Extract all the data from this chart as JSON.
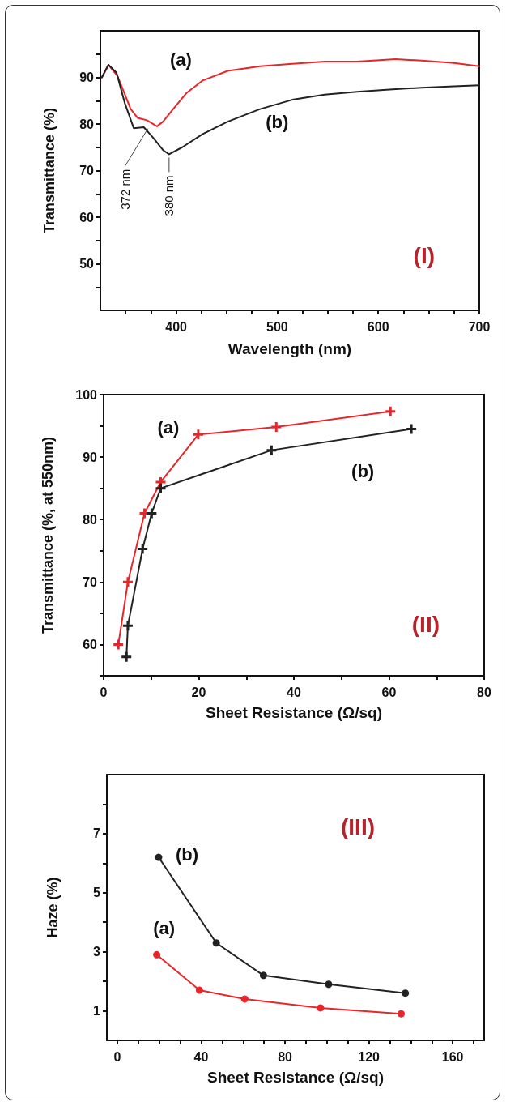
{
  "chart_data": [
    {
      "type": "line",
      "title": "(I)",
      "xlabel": "Wavelength (nm)",
      "ylabel": "Transmittance (%)",
      "x": [
        326.5,
        333,
        342,
        355,
        362,
        371,
        381,
        387,
        397,
        410,
        426,
        451,
        483,
        515,
        547,
        579,
        617,
        643,
        675,
        700
      ],
      "series": [
        {
          "name": "(a)",
          "color": "#e8262a",
          "values": [
            90,
            92.7,
            90.3,
            83.2,
            81.3,
            80.8,
            79.5,
            80.5,
            83.2,
            86.6,
            89.3,
            91.4,
            92.4,
            92.9,
            93.4,
            93.4,
            93.9,
            93.6,
            93.1,
            92.4
          ]
        },
        {
          "name": "(b)",
          "color": "#222222",
          "x": [
            326.5,
            333,
            341,
            349,
            358,
            368,
            377,
            387,
            393,
            406,
            426,
            451,
            483,
            515,
            547,
            579,
            611,
            643,
            675,
            700
          ],
          "values": [
            90,
            92.7,
            91,
            84.6,
            79.1,
            79.3,
            77.1,
            74.4,
            73.5,
            75,
            77.8,
            80.5,
            83.2,
            85.2,
            86.3,
            86.9,
            87.4,
            87.8,
            88.1,
            88.3
          ]
        }
      ],
      "xlim": [
        325,
        700
      ],
      "xticks": [
        {
          "value": 350,
          "label": null
        },
        {
          "value": 375,
          "label": null
        },
        400,
        {
          "value": 425,
          "label": null
        },
        {
          "value": 450,
          "label": null
        },
        {
          "value": 475,
          "label": null
        },
        500,
        {
          "value": 525,
          "label": null
        },
        {
          "value": 550,
          "label": null
        },
        {
          "value": 575,
          "label": null
        },
        600,
        {
          "value": 625,
          "label": null
        },
        {
          "value": 650,
          "label": null
        },
        {
          "value": 675,
          "label": null
        },
        700
      ],
      "ylim": [
        40,
        100
      ],
      "yticks": [
        {
          "value": 45,
          "label": null
        },
        50,
        {
          "value": 55,
          "label": null
        },
        60,
        {
          "value": 65,
          "label": null
        },
        70,
        {
          "value": 75,
          "label": null
        },
        80,
        {
          "value": 85,
          "label": null
        },
        90,
        {
          "value": 95,
          "label": null
        }
      ],
      "marker": "none",
      "line_style": "solid",
      "annotations": [
        {
          "text": "372 nm",
          "x": 372,
          "y": 79
        },
        "380 nm"
      ]
    },
    {
      "type": "line",
      "title": "(II)",
      "xlabel": "Sheet Resistance (Ω/sq)",
      "ylabel": "Transmittance (%, at 550nm)",
      "series": [
        {
          "name": "(a)",
          "color": "#e8262a",
          "x": [
            3.1,
            5.1,
            8.6,
            12,
            19.9,
            36.3,
            60.3
          ],
          "values": [
            60,
            70,
            81,
            86,
            93.6,
            94.8,
            97.3
          ]
        },
        {
          "name": "(b)",
          "color": "#222222",
          "x": [
            4.8,
            5.1,
            8.2,
            10.1,
            12,
            35.3,
            64.7
          ],
          "values": [
            58,
            63,
            75.3,
            81,
            85,
            91.1,
            94.5
          ]
        }
      ],
      "xlim": [
        0,
        80
      ],
      "xticks": [
        0,
        {
          "value": 10,
          "label": null
        },
        20,
        {
          "value": 30,
          "label": null
        },
        40,
        {
          "value": 50,
          "label": null
        },
        60,
        {
          "value": 70,
          "label": null
        },
        80
      ],
      "ylim": [
        55,
        100
      ],
      "yticks": [
        {
          "value": 55,
          "label": null
        },
        60,
        {
          "value": 65,
          "label": null
        },
        70,
        {
          "value": 75,
          "label": null
        },
        80,
        {
          "value": 85,
          "label": null
        },
        90,
        {
          "value": 95,
          "label": null
        },
        100
      ],
      "marker": "cross",
      "line_style": "solid"
    },
    {
      "type": "line",
      "title": "(III)",
      "xlabel": "Sheet Resistance (Ω/sq)",
      "ylabel": "Haze (%)",
      "series": [
        {
          "name": "(b)",
          "color": "#222222",
          "x": [
            19.7,
            47.2,
            69.7,
            100.8,
            137.4
          ],
          "values": [
            6.2,
            3.3,
            2.2,
            1.9,
            1.6
          ]
        },
        {
          "name": "(a)",
          "color": "#e8262a",
          "x": [
            18.8,
            39.2,
            60.8,
            96.9,
            135.4
          ],
          "values": [
            2.9,
            1.7,
            1.4,
            1.1,
            0.9
          ]
        }
      ],
      "xlim": [
        -5,
        175
      ],
      "xticks": [
        0,
        {
          "value": 10,
          "label": null
        },
        {
          "value": 20,
          "label": null
        },
        {
          "value": 30,
          "label": null
        },
        40,
        {
          "value": 50,
          "label": null
        },
        {
          "value": 60,
          "label": null
        },
        {
          "value": 70,
          "label": null
        },
        80,
        {
          "value": 90,
          "label": null
        },
        {
          "value": 100,
          "label": null
        },
        {
          "value": 110,
          "label": null
        },
        120,
        {
          "value": 130,
          "label": null
        },
        {
          "value": 140,
          "label": null
        },
        {
          "value": 150,
          "label": null
        },
        160,
        {
          "value": 170,
          "label": null
        }
      ],
      "ylim": [
        0,
        9
      ],
      "yticks": [
        1,
        {
          "value": 2,
          "label": null
        },
        3,
        {
          "value": 4,
          "label": null
        },
        5,
        {
          "value": 6,
          "label": null
        },
        7,
        {
          "value": 8,
          "label": null
        }
      ],
      "marker": "circle",
      "line_style": "solid"
    }
  ]
}
